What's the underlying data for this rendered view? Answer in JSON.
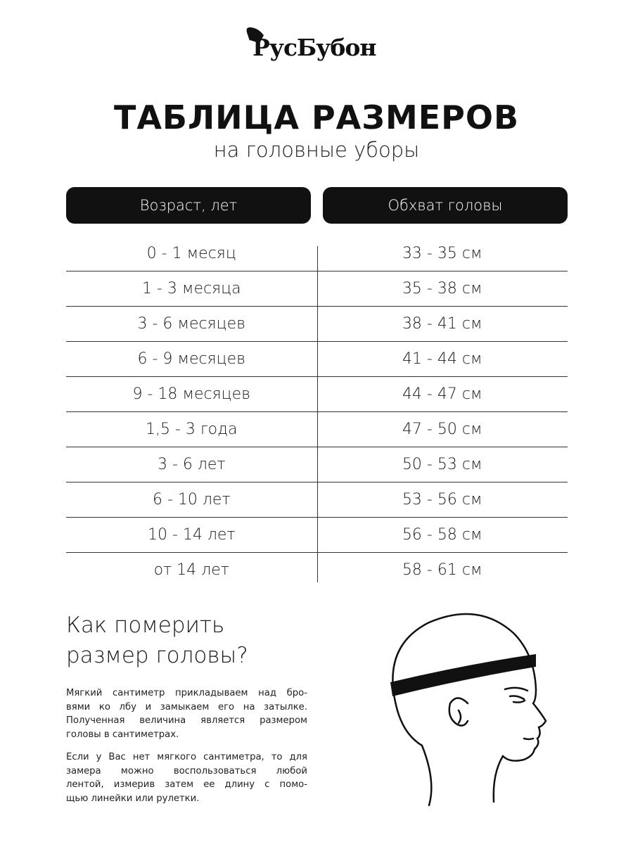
{
  "brand": {
    "logo_text": "РусБубон"
  },
  "title": "ТАБЛИЦА РАЗМЕРОВ",
  "subtitle": "на головные уборы",
  "table": {
    "headers": [
      "Возраст, лет",
      "Обхват головы"
    ],
    "rows": [
      [
        "0 - 1 месяц",
        "33 - 35 см"
      ],
      [
        "1 - 3 месяца",
        "35 - 38 см"
      ],
      [
        "3 - 6 месяцев",
        "38 - 41 см"
      ],
      [
        "6 - 9 месяцев",
        "41 - 44 см"
      ],
      [
        "9 - 18 месяцев",
        "44 - 47 см"
      ],
      [
        "1,5 - 3 года",
        "47 - 50 см"
      ],
      [
        "3 - 6 лет",
        "50 - 53 см"
      ],
      [
        "6 - 10 лет",
        "53 - 56 см"
      ],
      [
        "10 - 14 лет",
        "56 - 58 см"
      ],
      [
        "от 14 лет",
        "58 - 61 см"
      ]
    ]
  },
  "howto": {
    "heading_lines": [
      "Как померить",
      "размер головы?"
    ],
    "paragraph1": [
      "Мягкий сантиметр прикладываем над бро-",
      "вями ко лбу и замыкаем его на затылке.",
      "Полученная величина является размером",
      "головы в сантиметрах."
    ],
    "paragraph2": [
      "Если у Вас нет мягкого сантиметра, то для",
      "замера можно воспользоваться любой",
      "лентой, измерив затем ее длину с помо-",
      "щью линейки или рулетки."
    ]
  }
}
